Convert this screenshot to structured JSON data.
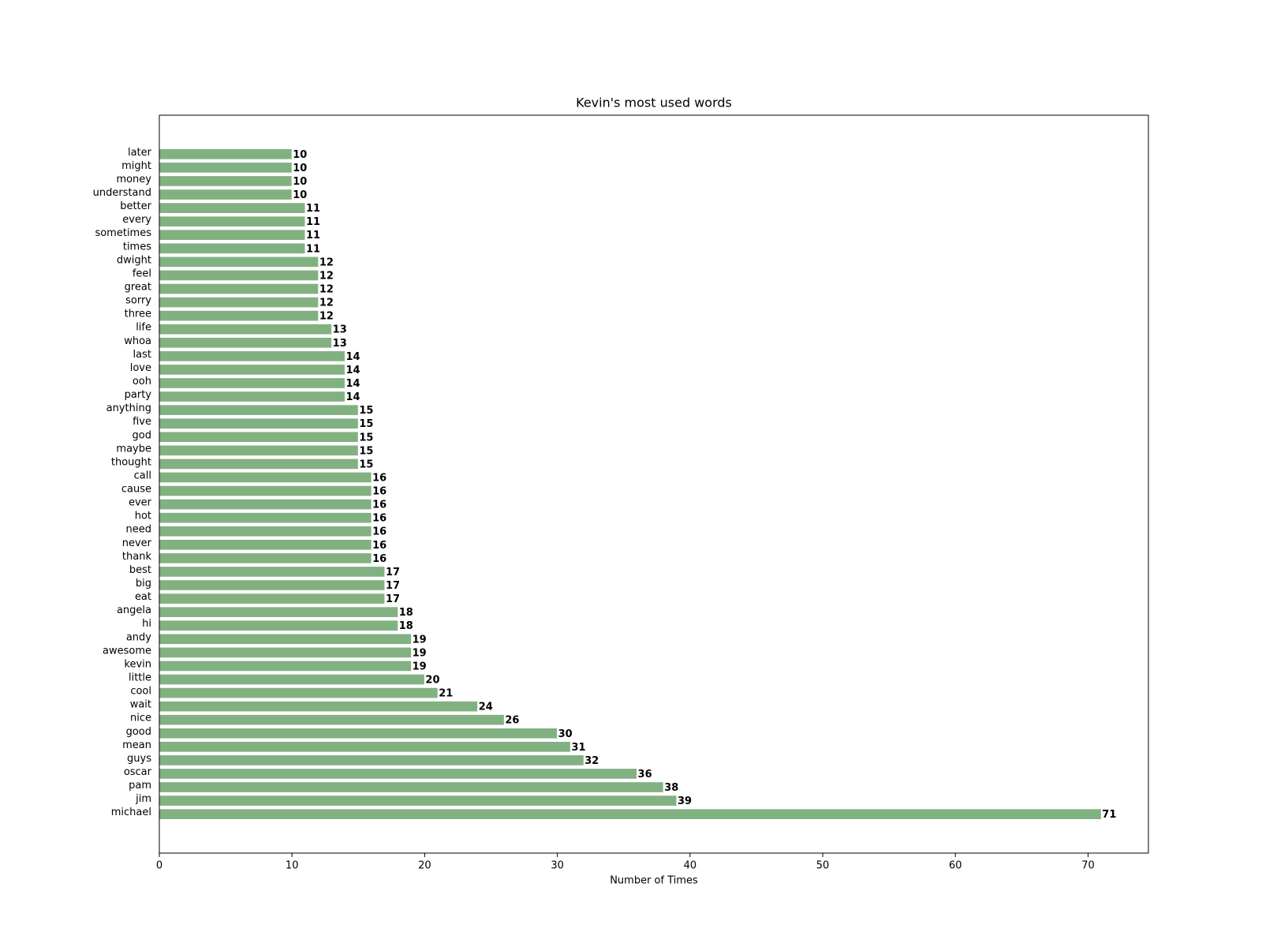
{
  "chart_data": {
    "type": "barh",
    "title": "Kevin's most used words",
    "xlabel": "Number of Times",
    "categories": [
      "michael",
      "jim",
      "pam",
      "oscar",
      "guys",
      "mean",
      "good",
      "nice",
      "wait",
      "cool",
      "little",
      "kevin",
      "awesome",
      "andy",
      "hi",
      "angela",
      "eat",
      "big",
      "best",
      "thank",
      "never",
      "need",
      "hot",
      "ever",
      "cause",
      "call",
      "thought",
      "maybe",
      "god",
      "five",
      "anything",
      "party",
      "ooh",
      "love",
      "last",
      "whoa",
      "life",
      "three",
      "sorry",
      "great",
      "feel",
      "dwight",
      "times",
      "sometimes",
      "every",
      "better",
      "understand",
      "money",
      "might",
      "later"
    ],
    "values": [
      71,
      39,
      38,
      36,
      32,
      31,
      30,
      26,
      24,
      21,
      20,
      19,
      19,
      19,
      18,
      18,
      17,
      17,
      17,
      16,
      16,
      16,
      16,
      16,
      16,
      16,
      15,
      15,
      15,
      15,
      15,
      14,
      14,
      14,
      14,
      13,
      13,
      12,
      12,
      12,
      12,
      12,
      11,
      11,
      11,
      11,
      10,
      10,
      10,
      10
    ],
    "color": "#82b181",
    "xlim": [
      0,
      74.55
    ],
    "xticks": [
      0,
      10,
      20,
      30,
      40,
      50,
      60,
      70
    ],
    "grid": false
  }
}
